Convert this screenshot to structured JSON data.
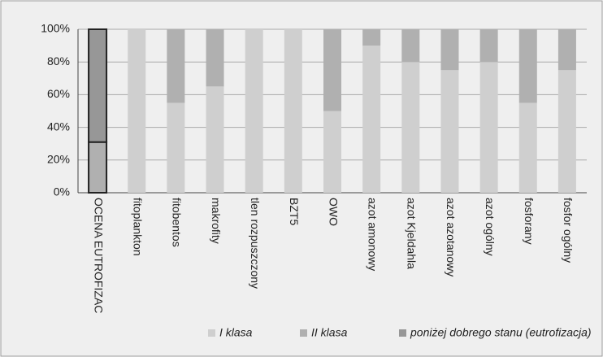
{
  "chart_data": {
    "type": "stacked_bar",
    "categories": [
      "OCENA EUTROFIZAC",
      "fitoplankton",
      "fitobentos",
      "makrofity",
      "tlen rozpuszczony",
      "BZT5",
      "OWO",
      "azot amonowy",
      "azot Kjeldahla",
      "azot azotanowy",
      "azot ogólny",
      "fosforany",
      "fosfor ogólny"
    ],
    "series": [
      {
        "name": "I klasa",
        "color": "#cfcfcf",
        "values": [
          0,
          100,
          55,
          65,
          100,
          100,
          50,
          90,
          80,
          75,
          80,
          55,
          75
        ]
      },
      {
        "name": "II klasa",
        "color": "#b0b0b0",
        "values": [
          31,
          0,
          45,
          35,
          0,
          0,
          50,
          10,
          20,
          25,
          20,
          45,
          25
        ]
      },
      {
        "name": "poniżej dobrego stanu (eutrofizacja)",
        "color": "#979797",
        "values": [
          69,
          0,
          0,
          0,
          0,
          0,
          0,
          0,
          0,
          0,
          0,
          0,
          0
        ]
      }
    ],
    "ylim": [
      0,
      100
    ],
    "yticks": [
      {
        "value": 0,
        "label": "0%"
      },
      {
        "value": 20,
        "label": "20%"
      },
      {
        "value": 40,
        "label": "40%"
      },
      {
        "value": 60,
        "label": "60%"
      },
      {
        "value": 80,
        "label": "80%"
      },
      {
        "value": 100,
        "label": "100%"
      }
    ],
    "grid": true,
    "legend": "bottom"
  }
}
